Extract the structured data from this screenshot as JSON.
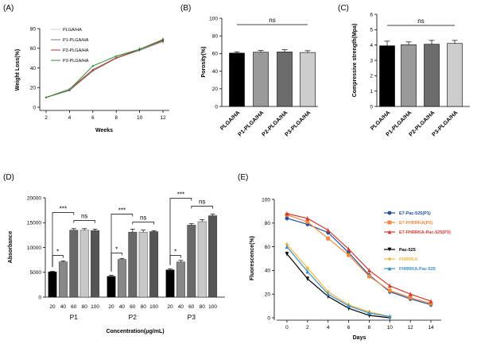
{
  "colors": {
    "bw": [
      "#000000",
      "#9a9a9a",
      "#6c6c6c",
      "#cdcdcd"
    ],
    "bar_d": [
      "#000000",
      "#888888",
      "#686868",
      "#c8c8c8",
      "#555555"
    ],
    "lineA": [
      "#cfcfcf",
      "#7a7a7a",
      "#b03a2e",
      "#3a8a3a"
    ],
    "lineE": [
      "#1f4e9c",
      "#f0883e",
      "#d23b2c",
      "#000000",
      "#f4b73e",
      "#3a8fc4"
    ]
  },
  "chart_data": [
    {
      "panel": "(A)",
      "type": "line",
      "xlabel": "Weeks",
      "ylabel": "Weight Loss(%)",
      "x": [
        2,
        4,
        6,
        8,
        10,
        12
      ],
      "xlim": [
        2,
        12
      ],
      "ylim": [
        0,
        80
      ],
      "yticks": [
        0,
        20,
        40,
        60,
        80
      ],
      "series": [
        {
          "name": "PLGA/HA",
          "values": [
            10,
            19,
            38,
            51,
            59,
            68
          ]
        },
        {
          "name": "P1-PLGA/HA",
          "values": [
            10,
            17,
            37,
            50,
            58,
            67
          ]
        },
        {
          "name": "P2-PLGA/HA",
          "values": [
            10,
            18,
            38,
            50,
            59,
            68
          ]
        },
        {
          "name": "P3-PLGA/HA",
          "values": [
            10,
            18,
            42,
            52,
            59,
            69
          ]
        }
      ]
    },
    {
      "panel": "(B)",
      "type": "bar",
      "ylabel": "Porosity(%)",
      "categories": [
        "PLGA/HA",
        "P1-PLGA/HA",
        "P2-PLGA/HA",
        "P3-PLGA/HA"
      ],
      "values": [
        60.5,
        61.5,
        61.8,
        61.2
      ],
      "errors": [
        1.5,
        2,
        2.5,
        2
      ],
      "ylim": [
        0,
        100
      ],
      "yticks": [
        0,
        20,
        40,
        60,
        80,
        100
      ],
      "annotation": "ns"
    },
    {
      "panel": "(C)",
      "type": "bar",
      "ylabel": "Compressive strength(Mpa)",
      "categories": [
        "PLGA/HA",
        "P1-PLGA/HA",
        "P2-PLGA/HA",
        "P3-PLGA/HA"
      ],
      "values": [
        3.95,
        4.02,
        4.05,
        4.1
      ],
      "errors": [
        0.3,
        0.18,
        0.25,
        0.2
      ],
      "ylim": [
        0,
        6
      ],
      "yticks": [
        0,
        1,
        2,
        3,
        4,
        5,
        6
      ],
      "annotation": "ns"
    },
    {
      "panel": "(D)",
      "type": "bar",
      "xlabel": "Concentration(μg/mL)",
      "ylabel": "Absorbance",
      "concentrations": [
        "20",
        "40",
        "60",
        "80",
        "100"
      ],
      "groups": [
        {
          "name": "P1",
          "values": [
            5100,
            7100,
            13500,
            13500,
            13400
          ],
          "errors": [
            100,
            200,
            300,
            300,
            300
          ]
        },
        {
          "name": "P2",
          "values": [
            4200,
            7600,
            13100,
            13100,
            13200
          ],
          "errors": [
            200,
            200,
            600,
            400,
            200
          ]
        },
        {
          "name": "P3",
          "values": [
            5500,
            7100,
            14500,
            15200,
            16400
          ],
          "errors": [
            200,
            300,
            300,
            400,
            300
          ]
        }
      ],
      "ylim": [
        0,
        20000
      ],
      "yticks": [
        0,
        5000,
        10000,
        15000,
        20000
      ],
      "significance": [
        "*",
        "***",
        "ns"
      ]
    },
    {
      "panel": "(E)",
      "type": "line",
      "xlabel": "Days",
      "ylabel": "Fluorescence(%)",
      "xticks": [
        0,
        2,
        4,
        6,
        8,
        10,
        12,
        14
      ],
      "xlim": [
        -1,
        15
      ],
      "ylim": [
        0,
        100
      ],
      "yticks": [
        0,
        20,
        40,
        60,
        80,
        100
      ],
      "series": [
        {
          "name": "E7-Pac-525(P1)",
          "x": [
            0,
            2,
            4,
            6,
            8,
            10,
            12,
            14
          ],
          "values": [
            84,
            79,
            72,
            55,
            36,
            22,
            16,
            11
          ]
        },
        {
          "name": "E7-FHRRKA(P2)",
          "x": [
            0,
            2,
            4,
            6,
            8,
            10,
            12,
            14
          ],
          "values": [
            87,
            81,
            67,
            53,
            35,
            23,
            17,
            12
          ]
        },
        {
          "name": "E7-FHRRKA-Pac-525(P3)",
          "x": [
            0,
            2,
            4,
            6,
            8,
            10,
            12,
            14
          ],
          "values": [
            88,
            84,
            74,
            58,
            40,
            27,
            20,
            14
          ]
        },
        {
          "name": "Pac-525",
          "x": [
            0,
            2,
            4,
            6,
            8,
            10
          ],
          "values": [
            54,
            33,
            18,
            8,
            2,
            0
          ]
        },
        {
          "name": "FHRRKA",
          "x": [
            0,
            2,
            4,
            6,
            8,
            10
          ],
          "values": [
            62,
            42,
            22,
            11,
            5,
            1
          ]
        },
        {
          "name": "FHRRKA-Pac-525",
          "x": [
            0,
            2,
            4,
            6,
            8,
            10
          ],
          "values": [
            60,
            39,
            20,
            10,
            4,
            1
          ]
        }
      ]
    }
  ]
}
